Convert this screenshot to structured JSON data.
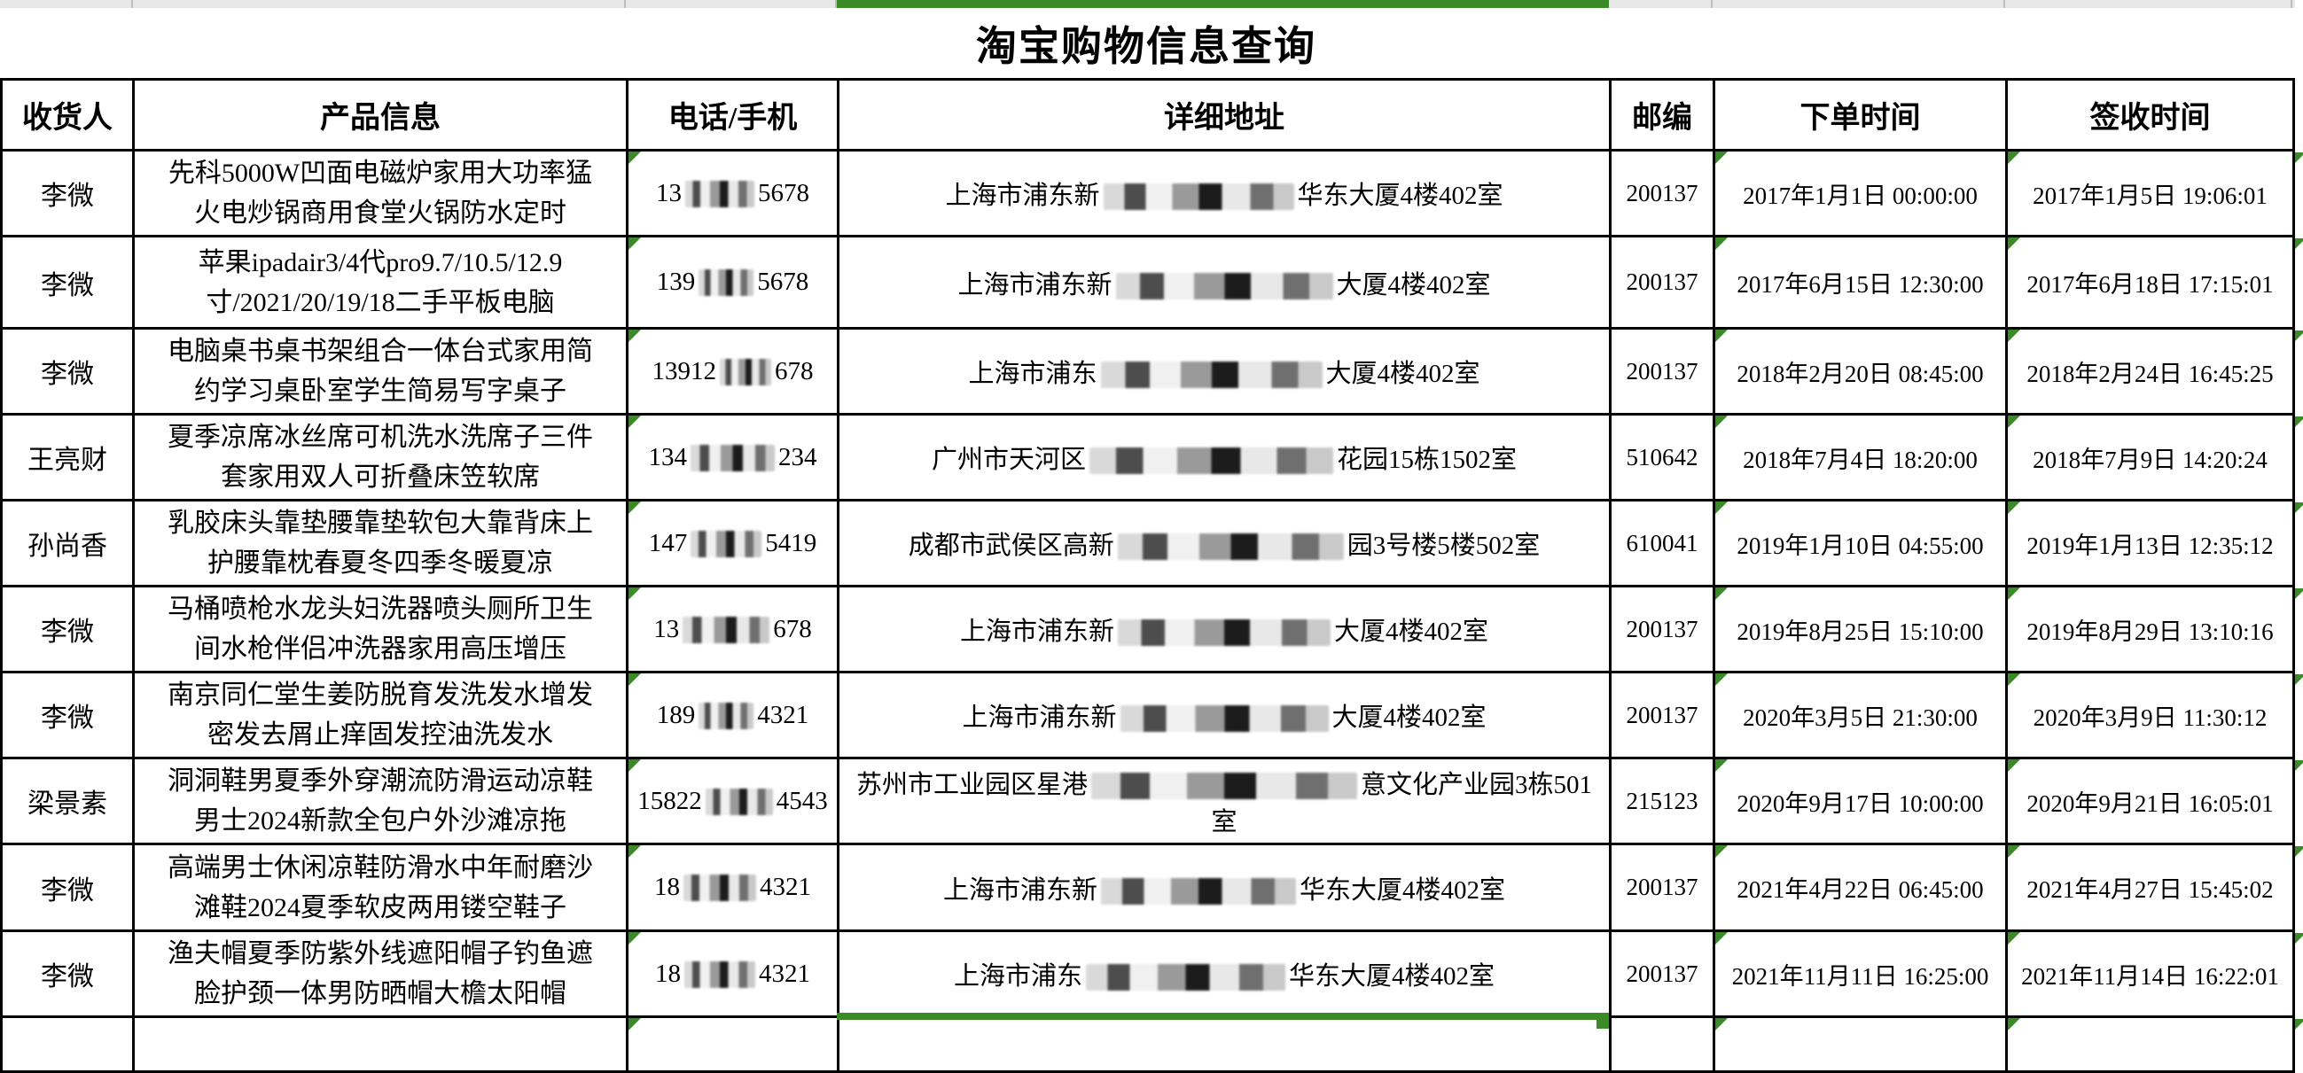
{
  "title": "淘宝购物信息查询",
  "colors": {
    "accent_green": "#3a8b28",
    "header_strip_gray": "#e7e7e7",
    "table_border": "#000000"
  },
  "columns": [
    {
      "label": "收货人"
    },
    {
      "label": "产品信息"
    },
    {
      "label": "电话/手机"
    },
    {
      "label": "详细地址"
    },
    {
      "label": "邮编"
    },
    {
      "label": "下单时间"
    },
    {
      "label": "签收时间"
    }
  ],
  "rows": [
    {
      "recipient": "李微",
      "product": "先科5000W凹面电磁炉家用大功率猛火电炒锅商用食堂火锅防水定时",
      "phone": {
        "prefix": "13",
        "suffix": "5678",
        "blur_w": 78
      },
      "address": {
        "prefix": "上海市浦东新",
        "suffix": "华东大厦4楼402室",
        "blur_w": 215
      },
      "zip": "200137",
      "order_time": "2017年1月1日 00:00:00",
      "sign_time": "2017年1月5日 19:06:01"
    },
    {
      "recipient": "李微",
      "product": "苹果ipadair3/4代pro9.7/10.5/12.9寸/2021/20/19/18二手平板电脑",
      "phone": {
        "prefix": "139",
        "suffix": "5678",
        "blur_w": 62
      },
      "address": {
        "prefix": "上海市浦东新",
        "suffix": "大厦4楼402室",
        "blur_w": 245
      },
      "zip": "200137",
      "order_time": "2017年6月15日 12:30:00",
      "sign_time": "2017年6月18日 17:15:01"
    },
    {
      "recipient": "李微",
      "product": "电脑桌书桌书架组合一体台式家用简约学习桌卧室学生简易写字桌子",
      "phone": {
        "prefix": "13912",
        "suffix": "678",
        "blur_w": 58
      },
      "address": {
        "prefix": "上海市浦东",
        "suffix": "大厦4楼402室",
        "blur_w": 250
      },
      "zip": "200137",
      "order_time": "2018年2月20日 08:45:00",
      "sign_time": "2018年2月24日 16:45:25"
    },
    {
      "recipient": "王亮财",
      "product": "夏季凉席冰丝席可机洗水洗席子三件套家用双人可折叠床笠软席",
      "phone": {
        "prefix": "134",
        "suffix": "234",
        "blur_w": 95
      },
      "address": {
        "prefix": "广州市天河区",
        "suffix": "花园15栋1502室",
        "blur_w": 275
      },
      "zip": "510642",
      "order_time": "2018年7月4日 18:20:00",
      "sign_time": "2018年7月9日 14:20:24"
    },
    {
      "recipient": "孙尚香",
      "product": "乳胶床头靠垫腰靠垫软包大靠背床上护腰靠枕春夏冬四季冬暖夏凉",
      "phone": {
        "prefix": "147",
        "suffix": "5419",
        "blur_w": 80
      },
      "address": {
        "prefix": "成都市武侯区高新",
        "suffix": "园3号楼5楼502室",
        "blur_w": 255
      },
      "zip": "610041",
      "order_time": "2019年1月10日 04:55:00",
      "sign_time": "2019年1月13日 12:35:12"
    },
    {
      "recipient": "李微",
      "product": "马桶喷枪水龙头妇洗器喷头厕所卫生间水枪伴侣冲洗器家用高压增压",
      "phone": {
        "prefix": "13",
        "suffix": "678",
        "blur_w": 98
      },
      "address": {
        "prefix": "上海市浦东新",
        "suffix": "大厦4楼402室",
        "blur_w": 240
      },
      "zip": "200137",
      "order_time": "2019年8月25日 15:10:00",
      "sign_time": "2019年8月29日 13:10:16"
    },
    {
      "recipient": "李微",
      "product": "南京同仁堂生姜防脱育发洗发水增发密发去屑止痒固发控油洗发水",
      "phone": {
        "prefix": "189",
        "suffix": "4321",
        "blur_w": 62
      },
      "address": {
        "prefix": "上海市浦东新",
        "suffix": "大厦4楼402室",
        "blur_w": 235
      },
      "zip": "200137",
      "order_time": "2020年3月5日 21:30:00",
      "sign_time": "2020年3月9日 11:30:12"
    },
    {
      "recipient": "梁景素",
      "product": "洞洞鞋男夏季外穿潮流防滑运动凉鞋男士2024新款全包户外沙滩凉拖",
      "phone": {
        "prefix": "15822",
        "suffix": "4543",
        "blur_w": 76
      },
      "address": {
        "prefix": "苏州市工业园区星港",
        "suffix": "意文化产业园3栋501室",
        "blur_w": 300
      },
      "zip": "215123",
      "order_time": "2020年9月17日 10:00:00",
      "sign_time": "2020年9月21日 16:05:01"
    },
    {
      "recipient": "李微",
      "product": "高端男士休闲凉鞋防滑水中年耐磨沙滩鞋2024夏季软皮两用镂空鞋子",
      "phone": {
        "prefix": "18",
        "suffix": "4321",
        "blur_w": 82
      },
      "address": {
        "prefix": "上海市浦东新",
        "suffix": "华东大厦4楼402室",
        "blur_w": 220
      },
      "zip": "200137",
      "order_time": "2021年4月22日 06:45:00",
      "sign_time": "2021年4月27日 15:45:02"
    },
    {
      "recipient": "李微",
      "product": "渔夫帽夏季防紫外线遮阳帽子钓鱼遮脸护颈一体男防晒帽大檐太阳帽",
      "phone": {
        "prefix": "18",
        "suffix": "4321",
        "blur_w": 80
      },
      "address": {
        "prefix": "上海市浦东",
        "suffix": "华东大厦4楼402室",
        "blur_w": 225
      },
      "zip": "200137",
      "order_time": "2021年11月11日 16:25:00",
      "sign_time": "2021年11月14日 16:22:01"
    },
    {
      "partial": true,
      "recipient": "",
      "product": "",
      "phone": {
        "prefix": "",
        "suffix": "",
        "blur_w": 0
      },
      "address": {
        "prefix": "",
        "suffix": "",
        "blur_w": 0
      },
      "zip": "",
      "order_time": "",
      "sign_time": ""
    }
  ]
}
